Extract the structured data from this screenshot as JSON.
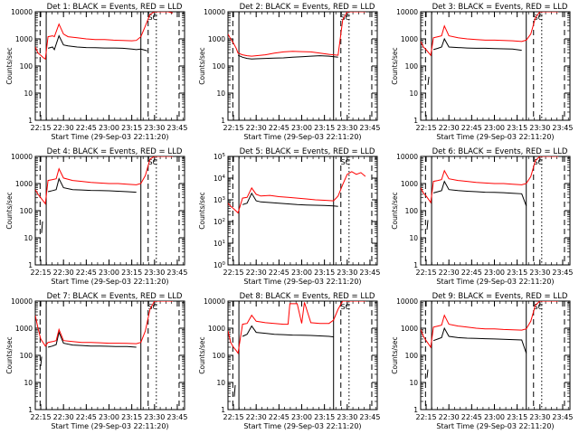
{
  "figure": {
    "xlabel": "Start Time (29-Sep-03 22:11:20)",
    "ylabel": "Counts/sec",
    "x_ticks": [
      "22:15",
      "22:30",
      "22:45",
      "23:00",
      "23:15",
      "23:30",
      "23:45"
    ],
    "event_label": "SC"
  },
  "chart_data": [
    {
      "type": "line",
      "title": "Det 1: BLACK = Events, RED = LLD",
      "scale": "log",
      "ylim": [
        1,
        10000
      ],
      "y_tick_labels": [
        "1",
        "10",
        "100",
        "1000",
        "10000"
      ],
      "series": [
        {
          "name": "Events",
          "color": "#000000",
          "x": [
            22.19,
            22.25,
            22.255,
            22.27,
            22.3,
            22.33,
            22.38,
            22.4,
            22.45,
            22.5,
            22.55,
            22.65,
            22.75,
            22.85,
            22.95,
            23.05,
            23.15,
            23.25,
            23.3,
            23.35,
            23.4,
            23.42,
            23.43
          ],
          "values": [
            null,
            null,
            null,
            60,
            null,
            450,
            500,
            400,
            1300,
            600,
            550,
            500,
            480,
            470,
            460,
            460,
            450,
            420,
            400,
            420,
            380,
            360,
            null
          ]
        },
        {
          "name": "LLD",
          "color": "#ff0000",
          "x": [
            22.19,
            22.22,
            22.25,
            22.28,
            22.3,
            22.33,
            22.38,
            22.4,
            22.45,
            22.5,
            22.55,
            22.65,
            22.75,
            22.85,
            22.95,
            23.05,
            23.15,
            23.25,
            23.3,
            23.35,
            23.4,
            23.45,
            23.5,
            23.55,
            23.6,
            23.65,
            23.7
          ],
          "values": [
            500,
            300,
            250,
            200,
            180,
            1200,
            1300,
            1200,
            3500,
            1500,
            1200,
            1100,
            1000,
            950,
            950,
            900,
            880,
            850,
            880,
            1200,
            3000,
            8000,
            10000,
            10000,
            10000,
            10000,
            9000
          ]
        }
      ]
    },
    {
      "type": "line",
      "title": "Det 2: BLACK = Events, RED = LLD",
      "scale": "log",
      "ylim": [
        1,
        10000
      ],
      "y_tick_labels": [
        "1",
        "10",
        "100",
        "1000",
        "10000"
      ],
      "series": [
        {
          "name": "Events",
          "color": "#000000",
          "x": [
            22.3,
            22.35,
            22.4,
            22.45,
            22.5,
            22.6,
            22.7,
            22.8,
            22.9,
            23.0,
            23.1,
            23.2,
            23.3,
            23.4
          ],
          "values": [
            250,
            210,
            190,
            180,
            185,
            190,
            195,
            200,
            210,
            220,
            230,
            240,
            230,
            210
          ]
        },
        {
          "name": "LLD",
          "color": "#ff0000",
          "x": [
            22.19,
            22.22,
            22.25,
            22.28,
            22.3,
            22.35,
            22.4,
            22.45,
            22.5,
            22.6,
            22.7,
            22.8,
            22.9,
            23.0,
            23.1,
            23.2,
            23.3,
            23.4,
            23.45,
            23.5,
            23.55,
            23.6,
            23.65,
            23.7
          ],
          "values": [
            1500,
            1000,
            700,
            450,
            300,
            260,
            240,
            230,
            240,
            260,
            300,
            330,
            350,
            340,
            330,
            300,
            270,
            250,
            5000,
            10000,
            10000,
            10000,
            10000,
            10000
          ]
        }
      ]
    },
    {
      "type": "line",
      "title": "Det 3: BLACK = Events, RED = LLD",
      "scale": "log",
      "ylim": [
        1,
        10000
      ],
      "y_tick_labels": [
        "1",
        "10",
        "100",
        "1000",
        "10000"
      ],
      "series": [
        {
          "name": "Events",
          "color": "#000000",
          "x": [
            22.19,
            22.27,
            22.28,
            22.3,
            22.33,
            22.38,
            22.42,
            22.45,
            22.5,
            22.6,
            22.7,
            22.8,
            22.9,
            23.0,
            23.1,
            23.2,
            23.3
          ],
          "values": [
            null,
            20,
            40,
            null,
            400,
            450,
            500,
            1000,
            500,
            480,
            460,
            450,
            450,
            440,
            430,
            420,
            380
          ]
        },
        {
          "name": "LLD",
          "color": "#ff0000",
          "x": [
            22.19,
            22.22,
            22.25,
            22.28,
            22.3,
            22.33,
            22.38,
            22.42,
            22.45,
            22.5,
            22.6,
            22.7,
            22.8,
            22.9,
            23.0,
            23.1,
            23.2,
            23.3,
            23.35,
            23.4,
            23.45,
            23.5,
            23.6,
            23.7
          ],
          "values": [
            800,
            500,
            400,
            300,
            250,
            1100,
            1200,
            1300,
            3000,
            1300,
            1100,
            1000,
            950,
            900,
            900,
            880,
            850,
            800,
            900,
            1500,
            6000,
            10000,
            10000,
            10000
          ]
        }
      ]
    },
    {
      "type": "line",
      "title": "Det 4: BLACK = Events, RED = LLD",
      "scale": "log",
      "ylim": [
        1,
        10000
      ],
      "y_tick_labels": [
        "1",
        "10",
        "100",
        "1000",
        "10000"
      ],
      "series": [
        {
          "name": "Events",
          "color": "#000000",
          "x": [
            22.19,
            22.26,
            22.27,
            22.3,
            22.33,
            22.38,
            22.42,
            22.45,
            22.5,
            22.6,
            22.7,
            22.8,
            22.9,
            23.0,
            23.1,
            23.2,
            23.3
          ],
          "values": [
            null,
            15,
            40,
            null,
            500,
            550,
            600,
            1500,
            700,
            600,
            580,
            560,
            550,
            540,
            520,
            500,
            480
          ]
        },
        {
          "name": "LLD",
          "color": "#ff0000",
          "x": [
            22.19,
            22.22,
            22.25,
            22.28,
            22.3,
            22.33,
            22.38,
            22.42,
            22.45,
            22.5,
            22.6,
            22.7,
            22.8,
            22.9,
            23.0,
            23.1,
            23.2,
            23.3,
            23.35,
            23.4,
            23.45,
            23.5,
            23.6,
            23.7
          ],
          "values": [
            600,
            400,
            300,
            220,
            180,
            1300,
            1400,
            1500,
            3500,
            1600,
            1300,
            1200,
            1100,
            1050,
            1000,
            1000,
            950,
            900,
            1000,
            2000,
            8000,
            10000,
            10000,
            10000
          ]
        }
      ]
    },
    {
      "type": "line",
      "title": "Det 5: BLACK = Events, RED = LLD",
      "scale": "log",
      "ylim": [
        1,
        100000
      ],
      "y_tick_labels": [
        "10^0",
        "10^1",
        "10^2",
        "10^3",
        "10^4",
        "10^5"
      ],
      "series": [
        {
          "name": "Events",
          "color": "#000000",
          "x": [
            22.19,
            22.22,
            22.25,
            22.28,
            22.3,
            22.35,
            22.4,
            22.45,
            22.5,
            22.55,
            22.65,
            22.75,
            22.85,
            22.95,
            23.05,
            23.15,
            23.25,
            23.35,
            23.4
          ],
          "values": [
            null,
            null,
            null,
            55,
            null,
            600,
            700,
            2000,
            900,
            800,
            750,
            700,
            650,
            600,
            580,
            560,
            550,
            520,
            500
          ]
        },
        {
          "name": "LLD",
          "color": "#ff0000",
          "x": [
            22.19,
            22.22,
            22.25,
            22.28,
            22.3,
            22.35,
            22.4,
            22.45,
            22.5,
            22.55,
            22.65,
            22.75,
            22.85,
            22.95,
            23.05,
            23.15,
            23.25,
            23.35,
            23.4,
            23.45,
            23.5,
            23.55,
            23.6,
            23.65,
            23.7
          ],
          "values": [
            700,
            500,
            400,
            300,
            250,
            1200,
            1300,
            3500,
            1800,
            1500,
            1600,
            1400,
            1300,
            1200,
            1100,
            1000,
            950,
            900,
            1500,
            5000,
            15000,
            20000,
            15000,
            18000,
            12000
          ]
        }
      ]
    },
    {
      "type": "line",
      "title": "Det 6: BLACK = Events, RED = LLD",
      "scale": "log",
      "ylim": [
        1,
        10000
      ],
      "y_tick_labels": [
        "1",
        "10",
        "100",
        "1000",
        "10000"
      ],
      "series": [
        {
          "name": "Events",
          "color": "#000000",
          "x": [
            22.19,
            22.26,
            22.27,
            22.3,
            22.33,
            22.38,
            22.42,
            22.45,
            22.5,
            22.6,
            22.7,
            22.8,
            22.9,
            23.0,
            23.1,
            23.2,
            23.3,
            23.35
          ],
          "values": [
            null,
            20,
            45,
            null,
            450,
            500,
            550,
            1200,
            600,
            550,
            520,
            500,
            480,
            470,
            460,
            440,
            420,
            150
          ]
        },
        {
          "name": "LLD",
          "color": "#ff0000",
          "x": [
            22.19,
            22.22,
            22.25,
            22.28,
            22.3,
            22.33,
            22.38,
            22.42,
            22.45,
            22.5,
            22.6,
            22.7,
            22.8,
            22.9,
            23.0,
            23.1,
            23.2,
            23.3,
            23.35,
            23.4,
            23.45,
            23.5,
            23.6,
            23.7
          ],
          "values": [
            700,
            450,
            350,
            250,
            200,
            1200,
            1300,
            1400,
            3000,
            1500,
            1300,
            1200,
            1100,
            1050,
            1000,
            1000,
            950,
            900,
            1000,
            1800,
            7000,
            10000,
            10000,
            10000
          ]
        }
      ]
    },
    {
      "type": "line",
      "title": "Det 7: BLACK = Events, RED = LLD",
      "scale": "log",
      "ylim": [
        1,
        10000
      ],
      "y_tick_labels": [
        "1",
        "10",
        "100",
        "1000",
        "10000"
      ],
      "series": [
        {
          "name": "Events",
          "color": "#000000",
          "x": [
            22.19,
            22.25,
            22.26,
            22.3,
            22.33,
            22.38,
            22.42,
            22.45,
            22.5,
            22.6,
            22.7,
            22.8,
            22.9,
            23.0,
            23.1,
            23.2,
            23.3
          ],
          "values": [
            null,
            40,
            90,
            null,
            200,
            220,
            250,
            700,
            280,
            240,
            230,
            220,
            220,
            215,
            210,
            210,
            200
          ]
        },
        {
          "name": "LLD",
          "color": "#ff0000",
          "x": [
            22.19,
            22.22,
            22.25,
            22.28,
            22.3,
            22.33,
            22.38,
            22.42,
            22.45,
            22.5,
            22.6,
            22.7,
            22.8,
            22.9,
            23.0,
            23.1,
            23.2,
            23.3,
            23.35,
            23.4,
            23.45,
            23.5,
            23.6,
            23.7
          ],
          "values": [
            3000,
            1000,
            400,
            280,
            220,
            300,
            320,
            350,
            900,
            350,
            320,
            300,
            300,
            290,
            280,
            280,
            275,
            270,
            300,
            800,
            5000,
            10000,
            10000,
            10000
          ]
        }
      ]
    },
    {
      "type": "line",
      "title": "Det 8: BLACK = Events, RED = LLD",
      "scale": "log",
      "ylim": [
        1,
        10000
      ],
      "y_tick_labels": [
        "1",
        "10",
        "100",
        "1000",
        "10000"
      ],
      "series": [
        {
          "name": "Events",
          "color": "#000000",
          "x": [
            22.19,
            22.26,
            22.27,
            22.3,
            22.35,
            22.4,
            22.45,
            22.5,
            22.6,
            22.7,
            22.8,
            22.9,
            23.0,
            23.1,
            23.2,
            23.3,
            23.35
          ],
          "values": [
            null,
            3,
            8,
            null,
            500,
            600,
            1200,
            700,
            650,
            600,
            580,
            560,
            550,
            540,
            520,
            500,
            480
          ]
        },
        {
          "name": "LLD",
          "color": "#ff0000",
          "x": [
            22.19,
            22.22,
            22.25,
            22.28,
            22.3,
            22.35,
            22.4,
            22.45,
            22.5,
            22.6,
            22.7,
            22.8,
            22.85,
            22.87,
            22.95,
            23.0,
            23.03,
            23.1,
            23.2,
            23.3,
            23.35,
            23.4,
            23.45,
            23.5,
            23.6,
            23.7
          ],
          "values": [
            800,
            300,
            200,
            150,
            120,
            1400,
            1500,
            3000,
            1800,
            1600,
            1500,
            1400,
            1400,
            8000,
            8000,
            1500,
            9000,
            1600,
            1500,
            1500,
            2000,
            5000,
            10000,
            10000,
            10000,
            10000
          ]
        }
      ]
    },
    {
      "type": "line",
      "title": "Det 9: BLACK = Events, RED = LLD",
      "scale": "log",
      "ylim": [
        1,
        10000
      ],
      "y_tick_labels": [
        "1",
        "10",
        "100",
        "1000",
        "10000"
      ],
      "series": [
        {
          "name": "Events",
          "color": "#000000",
          "x": [
            22.19,
            22.26,
            22.27,
            22.3,
            22.33,
            22.38,
            22.42,
            22.45,
            22.5,
            22.6,
            22.7,
            22.8,
            22.9,
            23.0,
            23.1,
            23.2,
            23.3,
            23.35
          ],
          "values": [
            null,
            15,
            30,
            null,
            350,
            400,
            450,
            1000,
            500,
            450,
            430,
            420,
            410,
            400,
            390,
            380,
            370,
            120
          ]
        },
        {
          "name": "LLD",
          "color": "#ff0000",
          "x": [
            22.19,
            22.22,
            22.25,
            22.28,
            22.3,
            22.33,
            22.38,
            22.42,
            22.45,
            22.5,
            22.6,
            22.7,
            22.8,
            22.9,
            23.0,
            23.1,
            23.2,
            23.3,
            23.35,
            23.4,
            23.45,
            23.5,
            23.6,
            23.7
          ],
          "values": [
            900,
            500,
            350,
            250,
            200,
            1100,
            1200,
            1300,
            3000,
            1400,
            1200,
            1100,
            1000,
            950,
            950,
            900,
            880,
            850,
            950,
            1800,
            7000,
            10000,
            10000,
            10000
          ]
        }
      ]
    }
  ]
}
